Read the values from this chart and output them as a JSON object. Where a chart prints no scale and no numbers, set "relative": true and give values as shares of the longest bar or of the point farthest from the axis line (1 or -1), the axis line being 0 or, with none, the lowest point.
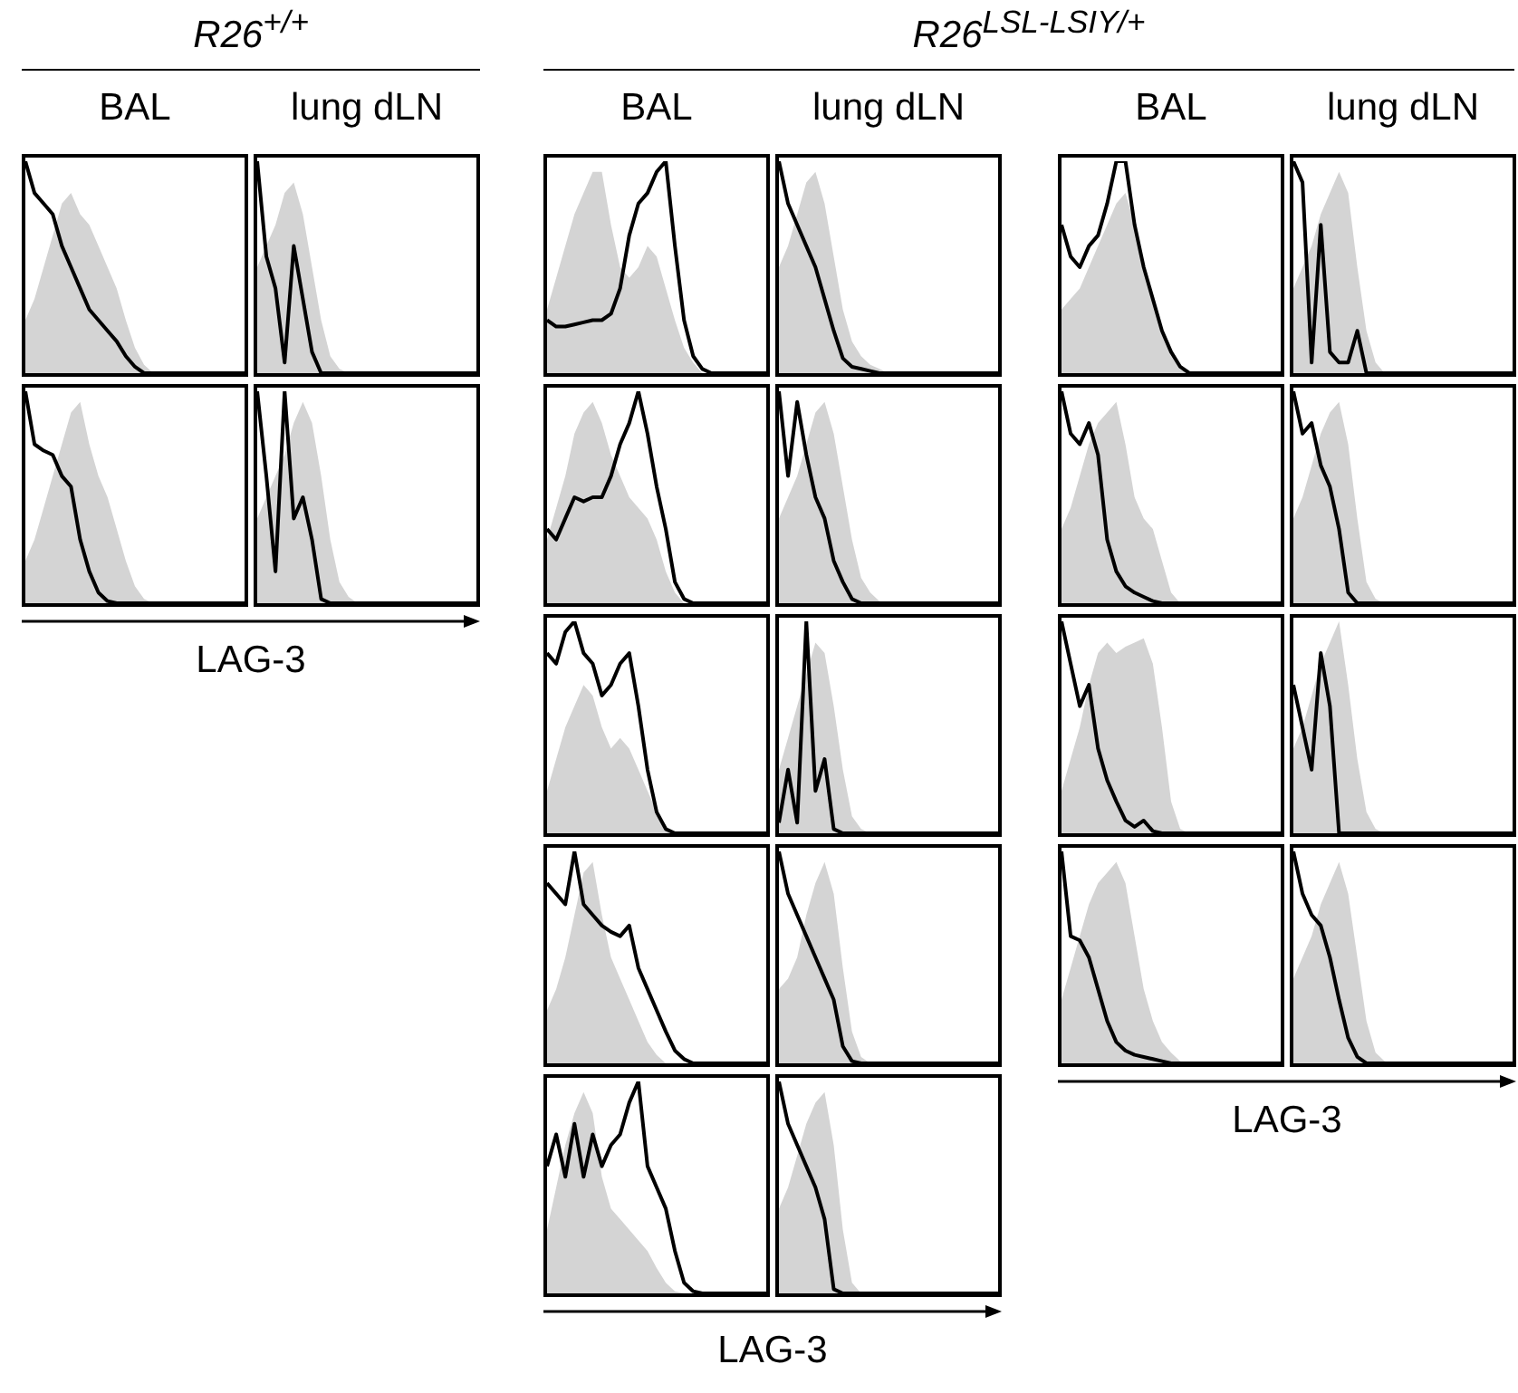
{
  "chart_data": [
    {
      "type": "line",
      "relative": true,
      "title": "BAL",
      "annotations": [
        "R26$^{+/+}$"
      ],
      "categories": [
        null,
        null,
        null,
        null,
        null,
        null,
        null,
        null,
        null,
        null,
        null,
        null,
        null,
        null,
        null,
        null,
        null,
        null,
        null,
        null,
        null,
        null,
        null,
        null,
        null
      ],
      "series": [
        {
          "type": "area",
          "color": "#d4d4d4",
          "values": [
            0.25,
            0.35,
            0.5,
            0.65,
            0.8,
            0.85,
            0.75,
            0.7,
            0.6,
            0.5,
            0.4,
            0.25,
            0.12,
            0.04,
            0,
            0,
            0,
            0,
            0,
            0,
            0,
            0,
            0,
            0,
            0
          ]
        },
        {
          "type": "line",
          "color": "#000000",
          "values": [
            1,
            0.85,
            0.8,
            0.75,
            0.6,
            0.5,
            0.4,
            0.3,
            0.25,
            0.2,
            0.15,
            0.08,
            0.03,
            0,
            0,
            0,
            0,
            0,
            0,
            0,
            0,
            0,
            0,
            0,
            0
          ]
        }
      ]
    },
    {
      "type": "line",
      "relative": true,
      "title": "lung dLN",
      "categories": [
        null,
        null,
        null,
        null,
        null,
        null,
        null,
        null,
        null,
        null,
        null,
        null,
        null,
        null,
        null,
        null,
        null,
        null,
        null,
        null,
        null,
        null,
        null,
        null,
        null
      ],
      "series": [
        {
          "type": "area",
          "color": "#d4d4d4",
          "values": [
            0.5,
            0.6,
            0.7,
            0.85,
            0.9,
            0.75,
            0.5,
            0.25,
            0.08,
            0.02,
            0,
            0,
            0,
            0,
            0,
            0,
            0,
            0,
            0,
            0,
            0,
            0,
            0,
            0,
            0
          ]
        },
        {
          "type": "line",
          "color": "#000000",
          "values": [
            1,
            0.55,
            0.4,
            0.05,
            0.6,
            0.35,
            0.1,
            0,
            0,
            0,
            0,
            0,
            0,
            0,
            0,
            0,
            0,
            0,
            0,
            0,
            0,
            0,
            0,
            0,
            0
          ]
        }
      ]
    },
    {
      "type": "line",
      "relative": true,
      "title": "BAL",
      "annotations": [
        "R26$^{LSL-LSIY/+}$"
      ],
      "categories": [
        null,
        null,
        null,
        null,
        null,
        null,
        null,
        null,
        null,
        null,
        null,
        null,
        null,
        null,
        null,
        null,
        null,
        null,
        null,
        null,
        null,
        null,
        null,
        null,
        null
      ],
      "series": [
        {
          "type": "area",
          "color": "#d4d4d4",
          "values": [
            0.3,
            0.45,
            0.6,
            0.75,
            0.85,
            0.95,
            0.95,
            0.7,
            0.5,
            0.45,
            0.5,
            0.6,
            0.55,
            0.4,
            0.25,
            0.12,
            0.05,
            0,
            0,
            0,
            0,
            0,
            0,
            0,
            0
          ]
        },
        {
          "type": "line",
          "color": "#000000",
          "values": [
            0.25,
            0.22,
            0.22,
            0.23,
            0.24,
            0.25,
            0.25,
            0.28,
            0.4,
            0.65,
            0.8,
            0.85,
            0.95,
            1,
            0.6,
            0.25,
            0.08,
            0.02,
            0,
            0,
            0,
            0,
            0,
            0,
            0
          ]
        }
      ]
    },
    {
      "type": "line",
      "relative": true,
      "title": "lung dLN",
      "categories": [
        null,
        null,
        null,
        null,
        null,
        null,
        null,
        null,
        null,
        null,
        null,
        null,
        null,
        null,
        null,
        null,
        null,
        null,
        null,
        null,
        null,
        null,
        null,
        null,
        null
      ],
      "series": [
        {
          "type": "area",
          "color": "#d4d4d4",
          "values": [
            0.5,
            0.6,
            0.75,
            0.9,
            0.95,
            0.8,
            0.55,
            0.3,
            0.15,
            0.08,
            0.04,
            0.02,
            0,
            0,
            0,
            0,
            0,
            0,
            0,
            0,
            0,
            0,
            0,
            0,
            0
          ]
        },
        {
          "type": "line",
          "color": "#000000",
          "values": [
            1,
            0.8,
            0.7,
            0.6,
            0.5,
            0.35,
            0.2,
            0.07,
            0.03,
            0.02,
            0.01,
            0,
            0,
            0,
            0,
            0,
            0,
            0,
            0,
            0,
            0,
            0,
            0,
            0,
            0
          ]
        }
      ]
    },
    {
      "type": "line",
      "relative": true,
      "title": "BAL",
      "categories": [
        null,
        null,
        null,
        null,
        null,
        null,
        null,
        null,
        null,
        null,
        null,
        null,
        null,
        null,
        null,
        null,
        null,
        null,
        null,
        null,
        null,
        null,
        null,
        null,
        null
      ],
      "series": [
        {
          "type": "area",
          "color": "#d4d4d4",
          "values": [
            0.3,
            0.35,
            0.4,
            0.5,
            0.6,
            0.7,
            0.8,
            0.85,
            0.7,
            0.5,
            0.35,
            0.2,
            0.08,
            0.02,
            0,
            0,
            0,
            0,
            0,
            0,
            0,
            0,
            0,
            0,
            0
          ]
        },
        {
          "type": "line",
          "color": "#000000",
          "values": [
            0.7,
            0.55,
            0.5,
            0.6,
            0.65,
            0.8,
            1,
            1,
            0.7,
            0.5,
            0.35,
            0.2,
            0.1,
            0.03,
            0,
            0,
            0,
            0,
            0,
            0,
            0,
            0,
            0,
            0,
            0
          ]
        }
      ]
    },
    {
      "type": "line",
      "relative": true,
      "title": "lung dLN",
      "categories": [
        null,
        null,
        null,
        null,
        null,
        null,
        null,
        null,
        null,
        null,
        null,
        null,
        null,
        null,
        null,
        null,
        null,
        null,
        null,
        null,
        null,
        null,
        null,
        null,
        null
      ],
      "series": [
        {
          "type": "area",
          "color": "#d4d4d4",
          "values": [
            0.4,
            0.5,
            0.6,
            0.75,
            0.85,
            0.95,
            0.85,
            0.5,
            0.2,
            0.05,
            0,
            0,
            0,
            0,
            0,
            0,
            0,
            0,
            0,
            0,
            0,
            0,
            0,
            0,
            0
          ]
        },
        {
          "type": "line",
          "color": "#000000",
          "values": [
            1,
            0.9,
            0.05,
            0.7,
            0.1,
            0.05,
            0.05,
            0.2,
            0,
            0,
            0,
            0,
            0,
            0,
            0,
            0,
            0,
            0,
            0,
            0,
            0,
            0,
            0,
            0,
            0
          ]
        }
      ]
    },
    {
      "type": "line",
      "relative": true,
      "xlabel": "LAG-3",
      "categories": [
        null,
        null,
        null,
        null,
        null,
        null,
        null,
        null,
        null,
        null,
        null,
        null,
        null,
        null,
        null,
        null,
        null,
        null,
        null,
        null,
        null,
        null,
        null,
        null,
        null
      ],
      "series": [
        {
          "type": "area",
          "color": "#d4d4d4",
          "values": [
            0.2,
            0.3,
            0.45,
            0.6,
            0.75,
            0.9,
            0.95,
            0.75,
            0.6,
            0.5,
            0.35,
            0.2,
            0.08,
            0.02,
            0,
            0,
            0,
            0,
            0,
            0,
            0,
            0,
            0,
            0,
            0
          ]
        },
        {
          "type": "line",
          "color": "#000000",
          "values": [
            1,
            0.75,
            0.72,
            0.7,
            0.6,
            0.55,
            0.3,
            0.15,
            0.05,
            0.01,
            0,
            0,
            0,
            0,
            0,
            0,
            0,
            0,
            0,
            0,
            0,
            0,
            0,
            0,
            0
          ]
        }
      ]
    },
    {
      "type": "line",
      "relative": true,
      "categories": [
        null,
        null,
        null,
        null,
        null,
        null,
        null,
        null,
        null,
        null,
        null,
        null,
        null,
        null,
        null,
        null,
        null,
        null,
        null,
        null,
        null,
        null,
        null,
        null,
        null
      ],
      "series": [
        {
          "type": "area",
          "color": "#d4d4d4",
          "values": [
            0.4,
            0.5,
            0.6,
            0.7,
            0.85,
            0.95,
            0.85,
            0.6,
            0.3,
            0.1,
            0.03,
            0,
            0,
            0,
            0,
            0,
            0,
            0,
            0,
            0,
            0,
            0,
            0,
            0,
            0
          ]
        },
        {
          "type": "line",
          "color": "#000000",
          "values": [
            1,
            0.6,
            0.15,
            1,
            0.4,
            0.5,
            0.3,
            0.02,
            0,
            0,
            0,
            0,
            0,
            0,
            0,
            0,
            0,
            0,
            0,
            0,
            0,
            0,
            0,
            0,
            0
          ]
        }
      ]
    },
    {
      "type": "line",
      "relative": true,
      "categories": [
        null,
        null,
        null,
        null,
        null,
        null,
        null,
        null,
        null,
        null,
        null,
        null,
        null,
        null,
        null,
        null,
        null,
        null,
        null,
        null,
        null,
        null,
        null,
        null,
        null
      ],
      "series": [
        {
          "type": "area",
          "color": "#d4d4d4",
          "values": [
            0.3,
            0.45,
            0.6,
            0.8,
            0.9,
            0.95,
            0.85,
            0.7,
            0.6,
            0.5,
            0.45,
            0.4,
            0.3,
            0.15,
            0.05,
            0,
            0,
            0,
            0,
            0,
            0,
            0,
            0,
            0,
            0
          ]
        },
        {
          "type": "line",
          "color": "#000000",
          "values": [
            0.35,
            0.3,
            0.4,
            0.5,
            0.48,
            0.5,
            0.5,
            0.6,
            0.75,
            0.85,
            1,
            0.8,
            0.55,
            0.35,
            0.1,
            0.02,
            0,
            0,
            0,
            0,
            0,
            0,
            0,
            0,
            0
          ]
        }
      ]
    },
    {
      "type": "line",
      "relative": true,
      "categories": [
        null,
        null,
        null,
        null,
        null,
        null,
        null,
        null,
        null,
        null,
        null,
        null,
        null,
        null,
        null,
        null,
        null,
        null,
        null,
        null,
        null,
        null,
        null,
        null,
        null
      ],
      "series": [
        {
          "type": "area",
          "color": "#d4d4d4",
          "values": [
            0.4,
            0.5,
            0.6,
            0.75,
            0.9,
            0.95,
            0.8,
            0.55,
            0.3,
            0.12,
            0.05,
            0.01,
            0,
            0,
            0,
            0,
            0,
            0,
            0,
            0,
            0,
            0,
            0,
            0,
            0
          ]
        },
        {
          "type": "line",
          "color": "#000000",
          "values": [
            1,
            0.6,
            0.95,
            0.7,
            0.5,
            0.4,
            0.2,
            0.1,
            0.02,
            0,
            0,
            0,
            0,
            0,
            0,
            0,
            0,
            0,
            0,
            0,
            0,
            0,
            0,
            0,
            0
          ]
        }
      ]
    },
    {
      "type": "line",
      "relative": true,
      "categories": [
        null,
        null,
        null,
        null,
        null,
        null,
        null,
        null,
        null,
        null,
        null,
        null,
        null,
        null,
        null,
        null,
        null,
        null,
        null,
        null,
        null,
        null,
        null,
        null,
        null
      ],
      "series": [
        {
          "type": "area",
          "color": "#d4d4d4",
          "values": [
            0.35,
            0.45,
            0.6,
            0.75,
            0.85,
            0.9,
            0.95,
            0.75,
            0.5,
            0.4,
            0.35,
            0.2,
            0.05,
            0,
            0,
            0,
            0,
            0,
            0,
            0,
            0,
            0,
            0,
            0,
            0
          ]
        },
        {
          "type": "line",
          "color": "#000000",
          "values": [
            1,
            0.8,
            0.75,
            0.85,
            0.7,
            0.3,
            0.15,
            0.08,
            0.05,
            0.03,
            0.01,
            0,
            0,
            0,
            0,
            0,
            0,
            0,
            0,
            0,
            0,
            0,
            0,
            0,
            0
          ]
        }
      ]
    },
    {
      "type": "line",
      "relative": true,
      "categories": [
        null,
        null,
        null,
        null,
        null,
        null,
        null,
        null,
        null,
        null,
        null,
        null,
        null,
        null,
        null,
        null,
        null,
        null,
        null,
        null,
        null,
        null,
        null,
        null,
        null
      ],
      "series": [
        {
          "type": "area",
          "color": "#d4d4d4",
          "values": [
            0.4,
            0.5,
            0.65,
            0.8,
            0.9,
            0.95,
            0.75,
            0.4,
            0.1,
            0.02,
            0,
            0,
            0,
            0,
            0,
            0,
            0,
            0,
            0,
            0,
            0,
            0,
            0,
            0,
            0
          ]
        },
        {
          "type": "line",
          "color": "#000000",
          "values": [
            1,
            0.8,
            0.85,
            0.65,
            0.55,
            0.35,
            0.05,
            0,
            0,
            0,
            0,
            0,
            0,
            0,
            0,
            0,
            0,
            0,
            0,
            0,
            0,
            0,
            0,
            0,
            0
          ]
        }
      ]
    },
    {
      "type": "line",
      "relative": true,
      "categories": [
        null,
        null,
        null,
        null,
        null,
        null,
        null,
        null,
        null,
        null,
        null,
        null,
        null,
        null,
        null,
        null,
        null,
        null,
        null,
        null,
        null,
        null,
        null,
        null,
        null
      ],
      "series": [
        {
          "type": "area",
          "color": "#d4d4d4",
          "values": [
            0.2,
            0.35,
            0.5,
            0.6,
            0.7,
            0.65,
            0.5,
            0.4,
            0.45,
            0.4,
            0.3,
            0.2,
            0.1,
            0.02,
            0,
            0,
            0,
            0,
            0,
            0,
            0,
            0,
            0,
            0,
            0
          ]
        },
        {
          "type": "line",
          "color": "#000000",
          "values": [
            0.85,
            0.8,
            0.95,
            1,
            0.85,
            0.8,
            0.65,
            0.7,
            0.8,
            0.85,
            0.6,
            0.3,
            0.1,
            0.02,
            0,
            0,
            0,
            0,
            0,
            0,
            0,
            0,
            0,
            0,
            0
          ]
        }
      ]
    },
    {
      "type": "line",
      "relative": true,
      "categories": [
        null,
        null,
        null,
        null,
        null,
        null,
        null,
        null,
        null,
        null,
        null,
        null,
        null,
        null,
        null,
        null,
        null,
        null,
        null,
        null,
        null,
        null,
        null,
        null,
        null
      ],
      "series": [
        {
          "type": "area",
          "color": "#d4d4d4",
          "values": [
            0.3,
            0.45,
            0.6,
            0.75,
            0.9,
            0.85,
            0.6,
            0.3,
            0.08,
            0.02,
            0,
            0,
            0,
            0,
            0,
            0,
            0,
            0,
            0,
            0,
            0,
            0,
            0,
            0,
            0
          ]
        },
        {
          "type": "line",
          "color": "#000000",
          "values": [
            0.05,
            0.3,
            0.05,
            1,
            0.2,
            0.35,
            0.02,
            0,
            0,
            0,
            0,
            0,
            0,
            0,
            0,
            0,
            0,
            0,
            0,
            0,
            0,
            0,
            0,
            0,
            0
          ]
        }
      ]
    },
    {
      "type": "line",
      "relative": true,
      "categories": [
        null,
        null,
        null,
        null,
        null,
        null,
        null,
        null,
        null,
        null,
        null,
        null,
        null,
        null,
        null,
        null,
        null,
        null,
        null,
        null,
        null,
        null,
        null,
        null,
        null
      ],
      "series": [
        {
          "type": "area",
          "color": "#d4d4d4",
          "values": [
            0.2,
            0.35,
            0.5,
            0.7,
            0.85,
            0.9,
            0.85,
            0.88,
            0.9,
            0.92,
            0.8,
            0.5,
            0.15,
            0.02,
            0,
            0,
            0,
            0,
            0,
            0,
            0,
            0,
            0,
            0,
            0
          ]
        },
        {
          "type": "line",
          "color": "#000000",
          "values": [
            1,
            0.8,
            0.6,
            0.7,
            0.4,
            0.25,
            0.15,
            0.06,
            0.03,
            0.06,
            0.01,
            0,
            0,
            0,
            0,
            0,
            0,
            0,
            0,
            0,
            0,
            0,
            0,
            0,
            0
          ]
        }
      ]
    },
    {
      "type": "line",
      "relative": true,
      "categories": [
        null,
        null,
        null,
        null,
        null,
        null,
        null,
        null,
        null,
        null,
        null,
        null,
        null,
        null,
        null,
        null,
        null,
        null,
        null,
        null,
        null,
        null,
        null,
        null,
        null
      ],
      "series": [
        {
          "type": "area",
          "color": "#d4d4d4",
          "values": [
            0.4,
            0.5,
            0.65,
            0.8,
            0.9,
            1,
            0.7,
            0.35,
            0.1,
            0.02,
            0,
            0,
            0,
            0,
            0,
            0,
            0,
            0,
            0,
            0,
            0,
            0,
            0,
            0,
            0
          ]
        },
        {
          "type": "line",
          "color": "#000000",
          "values": [
            0.7,
            0.5,
            0.3,
            0.85,
            0.6,
            0,
            0,
            0,
            0,
            0,
            0,
            0,
            0,
            0,
            0,
            0,
            0,
            0,
            0,
            0,
            0,
            0,
            0,
            0,
            0
          ]
        }
      ]
    },
    {
      "type": "line",
      "relative": true,
      "categories": [
        null,
        null,
        null,
        null,
        null,
        null,
        null,
        null,
        null,
        null,
        null,
        null,
        null,
        null,
        null,
        null,
        null,
        null,
        null,
        null,
        null,
        null,
        null,
        null,
        null
      ],
      "series": [
        {
          "type": "area",
          "color": "#d4d4d4",
          "values": [
            0.25,
            0.35,
            0.5,
            0.7,
            0.9,
            0.95,
            0.7,
            0.5,
            0.4,
            0.3,
            0.2,
            0.1,
            0.04,
            0,
            0,
            0,
            0,
            0,
            0,
            0,
            0,
            0,
            0,
            0,
            0
          ]
        },
        {
          "type": "line",
          "color": "#000000",
          "values": [
            0.85,
            0.8,
            0.75,
            1,
            0.75,
            0.7,
            0.65,
            0.62,
            0.6,
            0.65,
            0.45,
            0.35,
            0.25,
            0.15,
            0.06,
            0.02,
            0,
            0,
            0,
            0,
            0,
            0,
            0,
            0,
            0
          ]
        }
      ]
    },
    {
      "type": "line",
      "relative": true,
      "categories": [
        null,
        null,
        null,
        null,
        null,
        null,
        null,
        null,
        null,
        null,
        null,
        null,
        null,
        null,
        null,
        null,
        null,
        null,
        null,
        null,
        null,
        null,
        null,
        null,
        null
      ],
      "series": [
        {
          "type": "area",
          "color": "#d4d4d4",
          "values": [
            0.35,
            0.4,
            0.5,
            0.7,
            0.85,
            0.95,
            0.8,
            0.45,
            0.15,
            0.03,
            0,
            0,
            0,
            0,
            0,
            0,
            0,
            0,
            0,
            0,
            0,
            0,
            0,
            0,
            0
          ]
        },
        {
          "type": "line",
          "color": "#000000",
          "values": [
            1,
            0.8,
            0.7,
            0.6,
            0.5,
            0.4,
            0.3,
            0.08,
            0.01,
            0,
            0,
            0,
            0,
            0,
            0,
            0,
            0,
            0,
            0,
            0,
            0,
            0,
            0,
            0,
            0
          ]
        }
      ]
    },
    {
      "type": "line",
      "relative": true,
      "xlabel": "LAG-3",
      "categories": [
        null,
        null,
        null,
        null,
        null,
        null,
        null,
        null,
        null,
        null,
        null,
        null,
        null,
        null,
        null,
        null,
        null,
        null,
        null,
        null,
        null,
        null,
        null,
        null,
        null
      ],
      "series": [
        {
          "type": "area",
          "color": "#d4d4d4",
          "values": [
            0.3,
            0.45,
            0.6,
            0.75,
            0.85,
            0.9,
            0.95,
            0.85,
            0.6,
            0.35,
            0.2,
            0.1,
            0.05,
            0.01,
            0,
            0,
            0,
            0,
            0,
            0,
            0,
            0,
            0,
            0,
            0
          ]
        },
        {
          "type": "line",
          "color": "#000000",
          "values": [
            1,
            0.6,
            0.58,
            0.5,
            0.35,
            0.2,
            0.1,
            0.06,
            0.04,
            0.03,
            0.02,
            0.01,
            0,
            0,
            0,
            0,
            0,
            0,
            0,
            0,
            0,
            0,
            0,
            0,
            0
          ]
        }
      ]
    },
    {
      "type": "line",
      "relative": true,
      "categories": [
        null,
        null,
        null,
        null,
        null,
        null,
        null,
        null,
        null,
        null,
        null,
        null,
        null,
        null,
        null,
        null,
        null,
        null,
        null,
        null,
        null,
        null,
        null,
        null,
        null
      ],
      "series": [
        {
          "type": "area",
          "color": "#d4d4d4",
          "values": [
            0.4,
            0.5,
            0.6,
            0.75,
            0.85,
            0.95,
            0.8,
            0.5,
            0.2,
            0.05,
            0.01,
            0,
            0,
            0,
            0,
            0,
            0,
            0,
            0,
            0,
            0,
            0,
            0,
            0,
            0
          ]
        },
        {
          "type": "line",
          "color": "#000000",
          "values": [
            1,
            0.8,
            0.7,
            0.65,
            0.5,
            0.3,
            0.12,
            0.03,
            0,
            0,
            0,
            0,
            0,
            0,
            0,
            0,
            0,
            0,
            0,
            0,
            0,
            0,
            0,
            0,
            0
          ]
        }
      ]
    },
    {
      "type": "line",
      "relative": true,
      "xlabel": "LAG-3",
      "categories": [
        null,
        null,
        null,
        null,
        null,
        null,
        null,
        null,
        null,
        null,
        null,
        null,
        null,
        null,
        null,
        null,
        null,
        null,
        null,
        null,
        null,
        null,
        null,
        null,
        null
      ],
      "series": [
        {
          "type": "area",
          "color": "#d4d4d4",
          "values": [
            0.3,
            0.5,
            0.7,
            0.85,
            0.95,
            0.85,
            0.55,
            0.4,
            0.35,
            0.3,
            0.25,
            0.2,
            0.12,
            0.05,
            0.01,
            0,
            0,
            0,
            0,
            0,
            0,
            0,
            0,
            0,
            0
          ]
        },
        {
          "type": "line",
          "color": "#000000",
          "values": [
            0.6,
            0.75,
            0.55,
            0.8,
            0.55,
            0.75,
            0.6,
            0.7,
            0.75,
            0.9,
            1,
            0.6,
            0.5,
            0.4,
            0.2,
            0.05,
            0.01,
            0,
            0,
            0,
            0,
            0,
            0,
            0,
            0
          ]
        }
      ]
    },
    {
      "type": "line",
      "relative": true,
      "categories": [
        null,
        null,
        null,
        null,
        null,
        null,
        null,
        null,
        null,
        null,
        null,
        null,
        null,
        null,
        null,
        null,
        null,
        null,
        null,
        null,
        null,
        null,
        null,
        null,
        null
      ],
      "series": [
        {
          "type": "area",
          "color": "#d4d4d4",
          "values": [
            0.4,
            0.5,
            0.65,
            0.8,
            0.9,
            0.95,
            0.7,
            0.3,
            0.05,
            0,
            0,
            0,
            0,
            0,
            0,
            0,
            0,
            0,
            0,
            0,
            0,
            0,
            0,
            0,
            0
          ]
        },
        {
          "type": "line",
          "color": "#000000",
          "values": [
            1,
            0.8,
            0.7,
            0.6,
            0.5,
            0.35,
            0.02,
            0,
            0,
            0,
            0,
            0,
            0,
            0,
            0,
            0,
            0,
            0,
            0,
            0,
            0,
            0,
            0,
            0,
            0
          ]
        }
      ]
    }
  ]
}
